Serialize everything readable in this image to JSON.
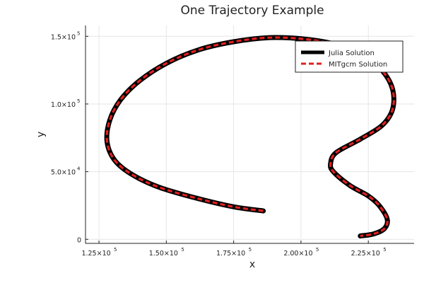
{
  "chart_data": {
    "type": "line",
    "title": "One Trajectory Example",
    "xlabel": "x",
    "ylabel": "y",
    "xlim": [
      120000,
      242000
    ],
    "ylim": [
      -3000,
      158000
    ],
    "xticks": [
      {
        "value": 125000,
        "mantissa": "1.25×10",
        "exp": "5"
      },
      {
        "value": 150000,
        "mantissa": "1.50×10",
        "exp": "5"
      },
      {
        "value": 175000,
        "mantissa": "1.75×10",
        "exp": "5"
      },
      {
        "value": 200000,
        "mantissa": "2.00×10",
        "exp": "5"
      },
      {
        "value": 225000,
        "mantissa": "2.25×10",
        "exp": "5"
      }
    ],
    "yticks": [
      {
        "value": 0,
        "mantissa": "0",
        "exp": ""
      },
      {
        "value": 50000,
        "mantissa": "5.0×10",
        "exp": "4"
      },
      {
        "value": 100000,
        "mantissa": "1.0×10",
        "exp": "5"
      },
      {
        "value": 150000,
        "mantissa": "1.5×10",
        "exp": "5"
      }
    ],
    "grid": true,
    "legend": {
      "position": "top-right"
    },
    "series": [
      {
        "name": "Julia Solution",
        "color": "#000000",
        "style": "solid",
        "x": [
          186000,
          175000,
          162000,
          148000,
          138000,
          131000,
          128000,
          129000,
          133000,
          140000,
          150000,
          162000,
          175000,
          188000,
          201000,
          213000,
          223000,
          230000,
          234000,
          234000,
          230000,
          222000,
          213000,
          211000,
          212000,
          218000,
          225000,
          229000,
          232000,
          231000,
          227000,
          222000
        ],
        "y": [
          21000,
          24000,
          30000,
          38000,
          47000,
          58000,
          72000,
          88000,
          103000,
          117000,
          130000,
          140000,
          146000,
          149000,
          148000,
          144000,
          136000,
          125000,
          111000,
          96000,
          84000,
          74000,
          64000,
          56000,
          50000,
          40000,
          32000,
          25000,
          15000,
          8000,
          4000,
          2500
        ]
      },
      {
        "name": "MITgcm Solution",
        "color": "#e02020",
        "style": "dashed",
        "x": [
          186000,
          175000,
          162000,
          148000,
          138000,
          131000,
          128000,
          129000,
          133000,
          140000,
          150000,
          162000,
          175000,
          188000,
          201000,
          213000,
          223000,
          230000,
          234000,
          234000,
          230000,
          222000,
          213000,
          211000,
          212000,
          218000,
          225000,
          229000,
          232000,
          231000,
          227000,
          222000
        ],
        "y": [
          21000,
          24000,
          30000,
          38000,
          47000,
          58000,
          72000,
          88000,
          103000,
          117000,
          130000,
          140000,
          146000,
          149000,
          148000,
          144000,
          136000,
          125000,
          111000,
          96000,
          84000,
          74000,
          64000,
          56000,
          50000,
          40000,
          32000,
          25000,
          15000,
          8000,
          4000,
          2500
        ]
      }
    ]
  }
}
